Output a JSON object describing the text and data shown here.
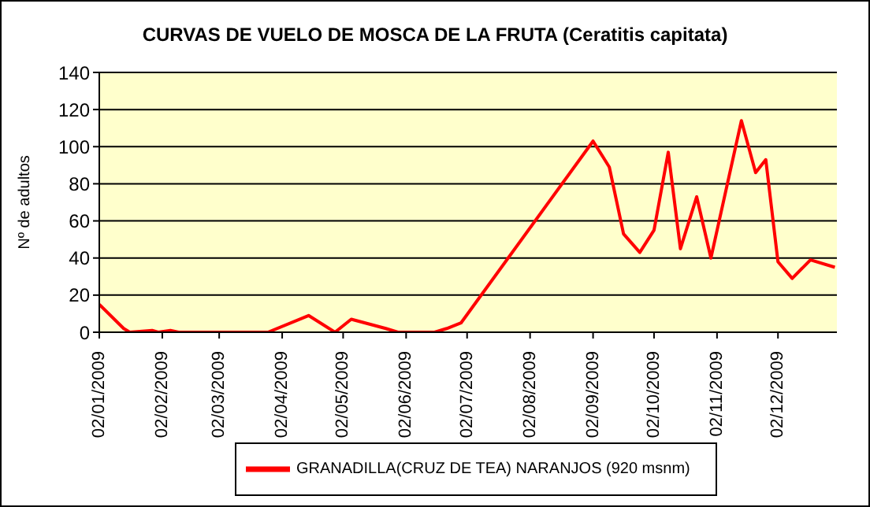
{
  "chart_data": {
    "type": "line",
    "title": "CURVAS DE VUELO DE MOSCA DE LA FRUTA (Ceratitis capitata)",
    "ylabel": "Nº de adultos",
    "x": [
      "2009-01-02",
      "2009-01-14",
      "2009-01-17",
      "2009-01-28",
      "2009-01-31",
      "2009-02-06",
      "2009-02-10",
      "2009-03-26",
      "2009-04-15",
      "2009-04-28",
      "2009-05-06",
      "2009-05-23",
      "2009-05-29",
      "2009-06-16",
      "2009-06-22",
      "2009-06-29",
      "2009-09-02",
      "2009-09-10",
      "2009-09-17",
      "2009-09-25",
      "2009-10-02",
      "2009-10-09",
      "2009-10-15",
      "2009-10-23",
      "2009-10-30",
      "2009-11-14",
      "2009-11-21",
      "2009-11-26",
      "2009-12-02",
      "2009-12-09",
      "2009-12-18",
      "2009-12-30"
    ],
    "series": [
      {
        "name": "GRANADILLA(CRUZ DE TEA) NARANJOS (920 msnm)",
        "color": "#ff0000",
        "values": [
          15,
          2,
          0,
          1,
          0,
          1,
          0,
          0,
          9,
          0,
          7,
          2,
          0,
          0,
          2,
          5,
          103,
          89,
          53,
          43,
          55,
          97,
          45,
          73,
          40,
          114,
          86,
          93,
          38,
          29,
          39,
          35
        ]
      }
    ],
    "xlim": [
      "2009-01-02",
      "2009-12-31"
    ],
    "xticks": [
      {
        "value": "2009-01-02",
        "label": "02/01/2009"
      },
      {
        "value": "2009-02-02",
        "label": "02/02/2009"
      },
      {
        "value": "2009-03-02",
        "label": "02/03/2009"
      },
      {
        "value": "2009-04-02",
        "label": "02/04/2009"
      },
      {
        "value": "2009-05-02",
        "label": "02/05/2009"
      },
      {
        "value": "2009-06-02",
        "label": "02/06/2009"
      },
      {
        "value": "2009-07-02",
        "label": "02/07/2009"
      },
      {
        "value": "2009-08-02",
        "label": "02/08/2009"
      },
      {
        "value": "2009-09-02",
        "label": "02/09/2009"
      },
      {
        "value": "2009-10-02",
        "label": "02/10/2009"
      },
      {
        "value": "2009-11-02",
        "label": "02/11/2009"
      },
      {
        "value": "2009-12-02",
        "label": "02/12/2009"
      }
    ],
    "ylim": [
      0,
      140
    ],
    "yticks": [
      0,
      20,
      40,
      60,
      80,
      100,
      120,
      140
    ],
    "grid": "y",
    "legend": "bottom",
    "marker": "none",
    "line_style": "solid"
  }
}
